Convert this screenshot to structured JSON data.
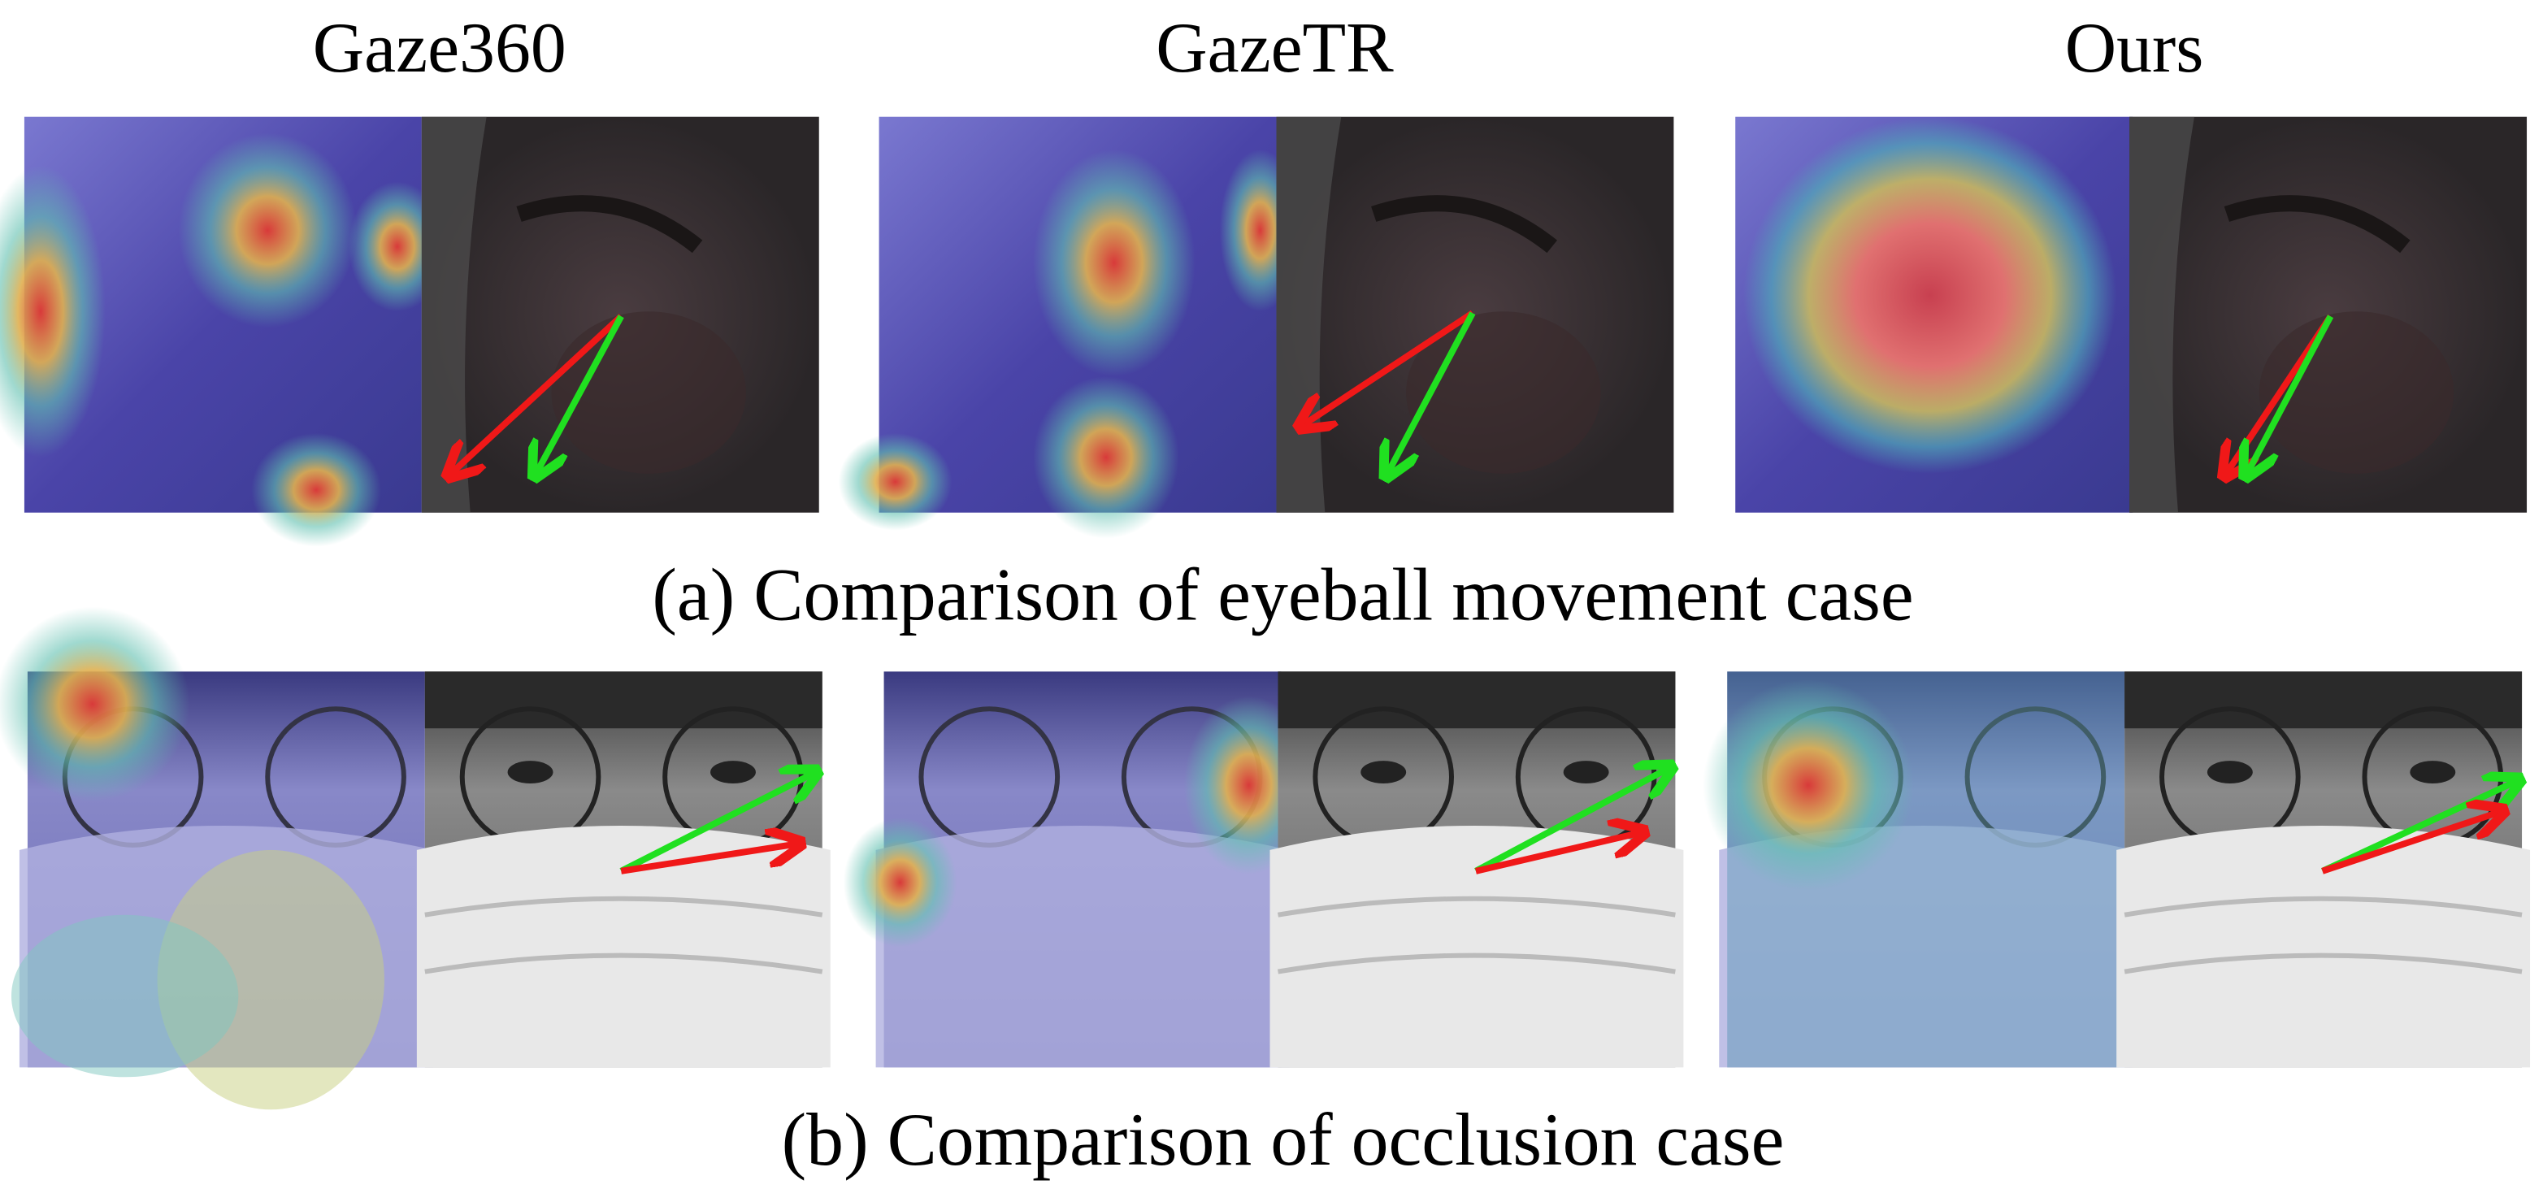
{
  "columns": {
    "0": {
      "title": "Gaze360"
    },
    "1": {
      "title": "GazeTR"
    },
    "2": {
      "title": "Ours"
    }
  },
  "rows": {
    "0": {
      "caption": "(a) Comparison of eyeball movement case"
    },
    "1": {
      "caption": "(b) Comparison of occlusion case"
    }
  }
}
